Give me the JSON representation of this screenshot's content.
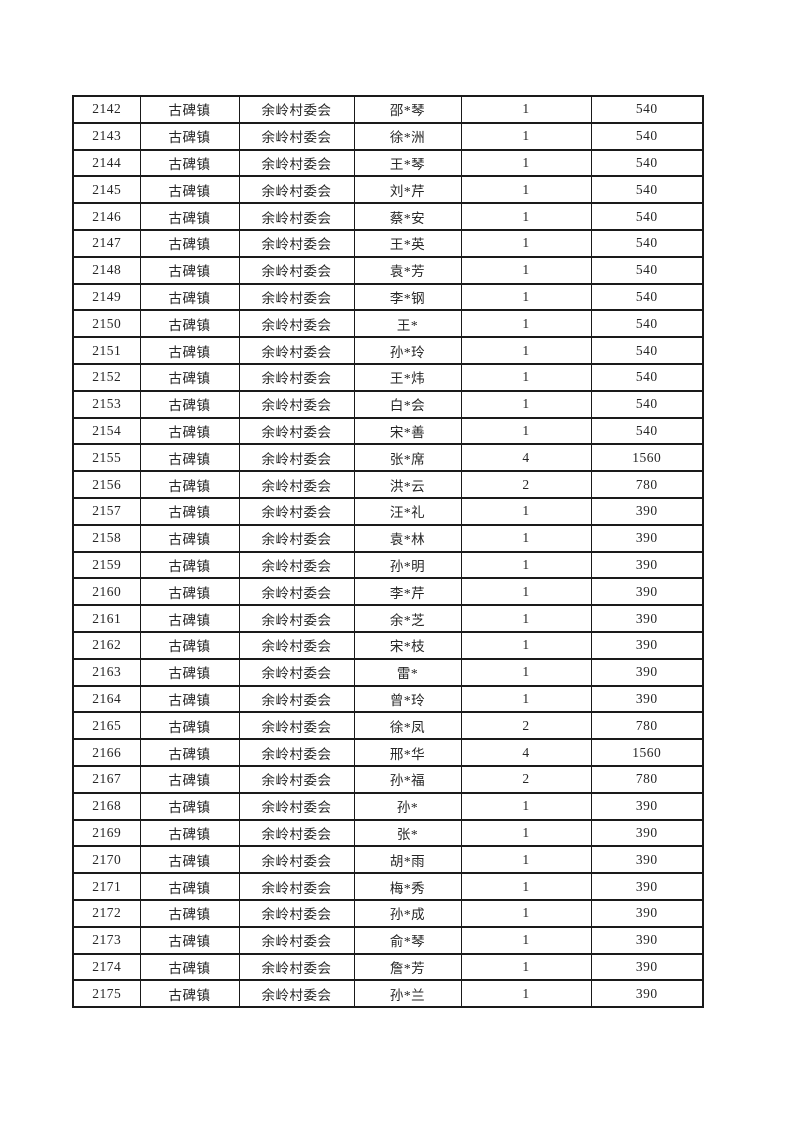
{
  "page": {
    "background_color": "#ffffff",
    "text_color": "#262626",
    "border_color": "#1a1a1a"
  },
  "table": {
    "rows": [
      [
        "2142",
        "古碑镇",
        "余岭村委会",
        "邵*琴",
        "1",
        "540"
      ],
      [
        "2143",
        "古碑镇",
        "余岭村委会",
        "徐*洲",
        "1",
        "540"
      ],
      [
        "2144",
        "古碑镇",
        "余岭村委会",
        "王*琴",
        "1",
        "540"
      ],
      [
        "2145",
        "古碑镇",
        "余岭村委会",
        "刘*芹",
        "1",
        "540"
      ],
      [
        "2146",
        "古碑镇",
        "余岭村委会",
        "蔡*安",
        "1",
        "540"
      ],
      [
        "2147",
        "古碑镇",
        "余岭村委会",
        "王*英",
        "1",
        "540"
      ],
      [
        "2148",
        "古碑镇",
        "余岭村委会",
        "袁*芳",
        "1",
        "540"
      ],
      [
        "2149",
        "古碑镇",
        "余岭村委会",
        "李*钢",
        "1",
        "540"
      ],
      [
        "2150",
        "古碑镇",
        "余岭村委会",
        "王*",
        "1",
        "540"
      ],
      [
        "2151",
        "古碑镇",
        "余岭村委会",
        "孙*玲",
        "1",
        "540"
      ],
      [
        "2152",
        "古碑镇",
        "余岭村委会",
        "王*炜",
        "1",
        "540"
      ],
      [
        "2153",
        "古碑镇",
        "余岭村委会",
        "白*会",
        "1",
        "540"
      ],
      [
        "2154",
        "古碑镇",
        "余岭村委会",
        "宋*善",
        "1",
        "540"
      ],
      [
        "2155",
        "古碑镇",
        "余岭村委会",
        "张*席",
        "4",
        "1560"
      ],
      [
        "2156",
        "古碑镇",
        "余岭村委会",
        "洪*云",
        "2",
        "780"
      ],
      [
        "2157",
        "古碑镇",
        "余岭村委会",
        "汪*礼",
        "1",
        "390"
      ],
      [
        "2158",
        "古碑镇",
        "余岭村委会",
        "袁*林",
        "1",
        "390"
      ],
      [
        "2159",
        "古碑镇",
        "余岭村委会",
        "孙*明",
        "1",
        "390"
      ],
      [
        "2160",
        "古碑镇",
        "余岭村委会",
        "李*芹",
        "1",
        "390"
      ],
      [
        "2161",
        "古碑镇",
        "余岭村委会",
        "余*芝",
        "1",
        "390"
      ],
      [
        "2162",
        "古碑镇",
        "余岭村委会",
        "宋*枝",
        "1",
        "390"
      ],
      [
        "2163",
        "古碑镇",
        "余岭村委会",
        "雷*",
        "1",
        "390"
      ],
      [
        "2164",
        "古碑镇",
        "余岭村委会",
        "曾*玲",
        "1",
        "390"
      ],
      [
        "2165",
        "古碑镇",
        "余岭村委会",
        "徐*凤",
        "2",
        "780"
      ],
      [
        "2166",
        "古碑镇",
        "余岭村委会",
        "邢*华",
        "4",
        "1560"
      ],
      [
        "2167",
        "古碑镇",
        "余岭村委会",
        "孙*福",
        "2",
        "780"
      ],
      [
        "2168",
        "古碑镇",
        "余岭村委会",
        "孙*",
        "1",
        "390"
      ],
      [
        "2169",
        "古碑镇",
        "余岭村委会",
        "张*",
        "1",
        "390"
      ],
      [
        "2170",
        "古碑镇",
        "余岭村委会",
        "胡*雨",
        "1",
        "390"
      ],
      [
        "2171",
        "古碑镇",
        "余岭村委会",
        "梅*秀",
        "1",
        "390"
      ],
      [
        "2172",
        "古碑镇",
        "余岭村委会",
        "孙*成",
        "1",
        "390"
      ],
      [
        "2173",
        "古碑镇",
        "余岭村委会",
        "俞*琴",
        "1",
        "390"
      ],
      [
        "2174",
        "古碑镇",
        "余岭村委会",
        "詹*芳",
        "1",
        "390"
      ],
      [
        "2175",
        "古碑镇",
        "余岭村委会",
        "孙*兰",
        "1",
        "390"
      ]
    ]
  }
}
